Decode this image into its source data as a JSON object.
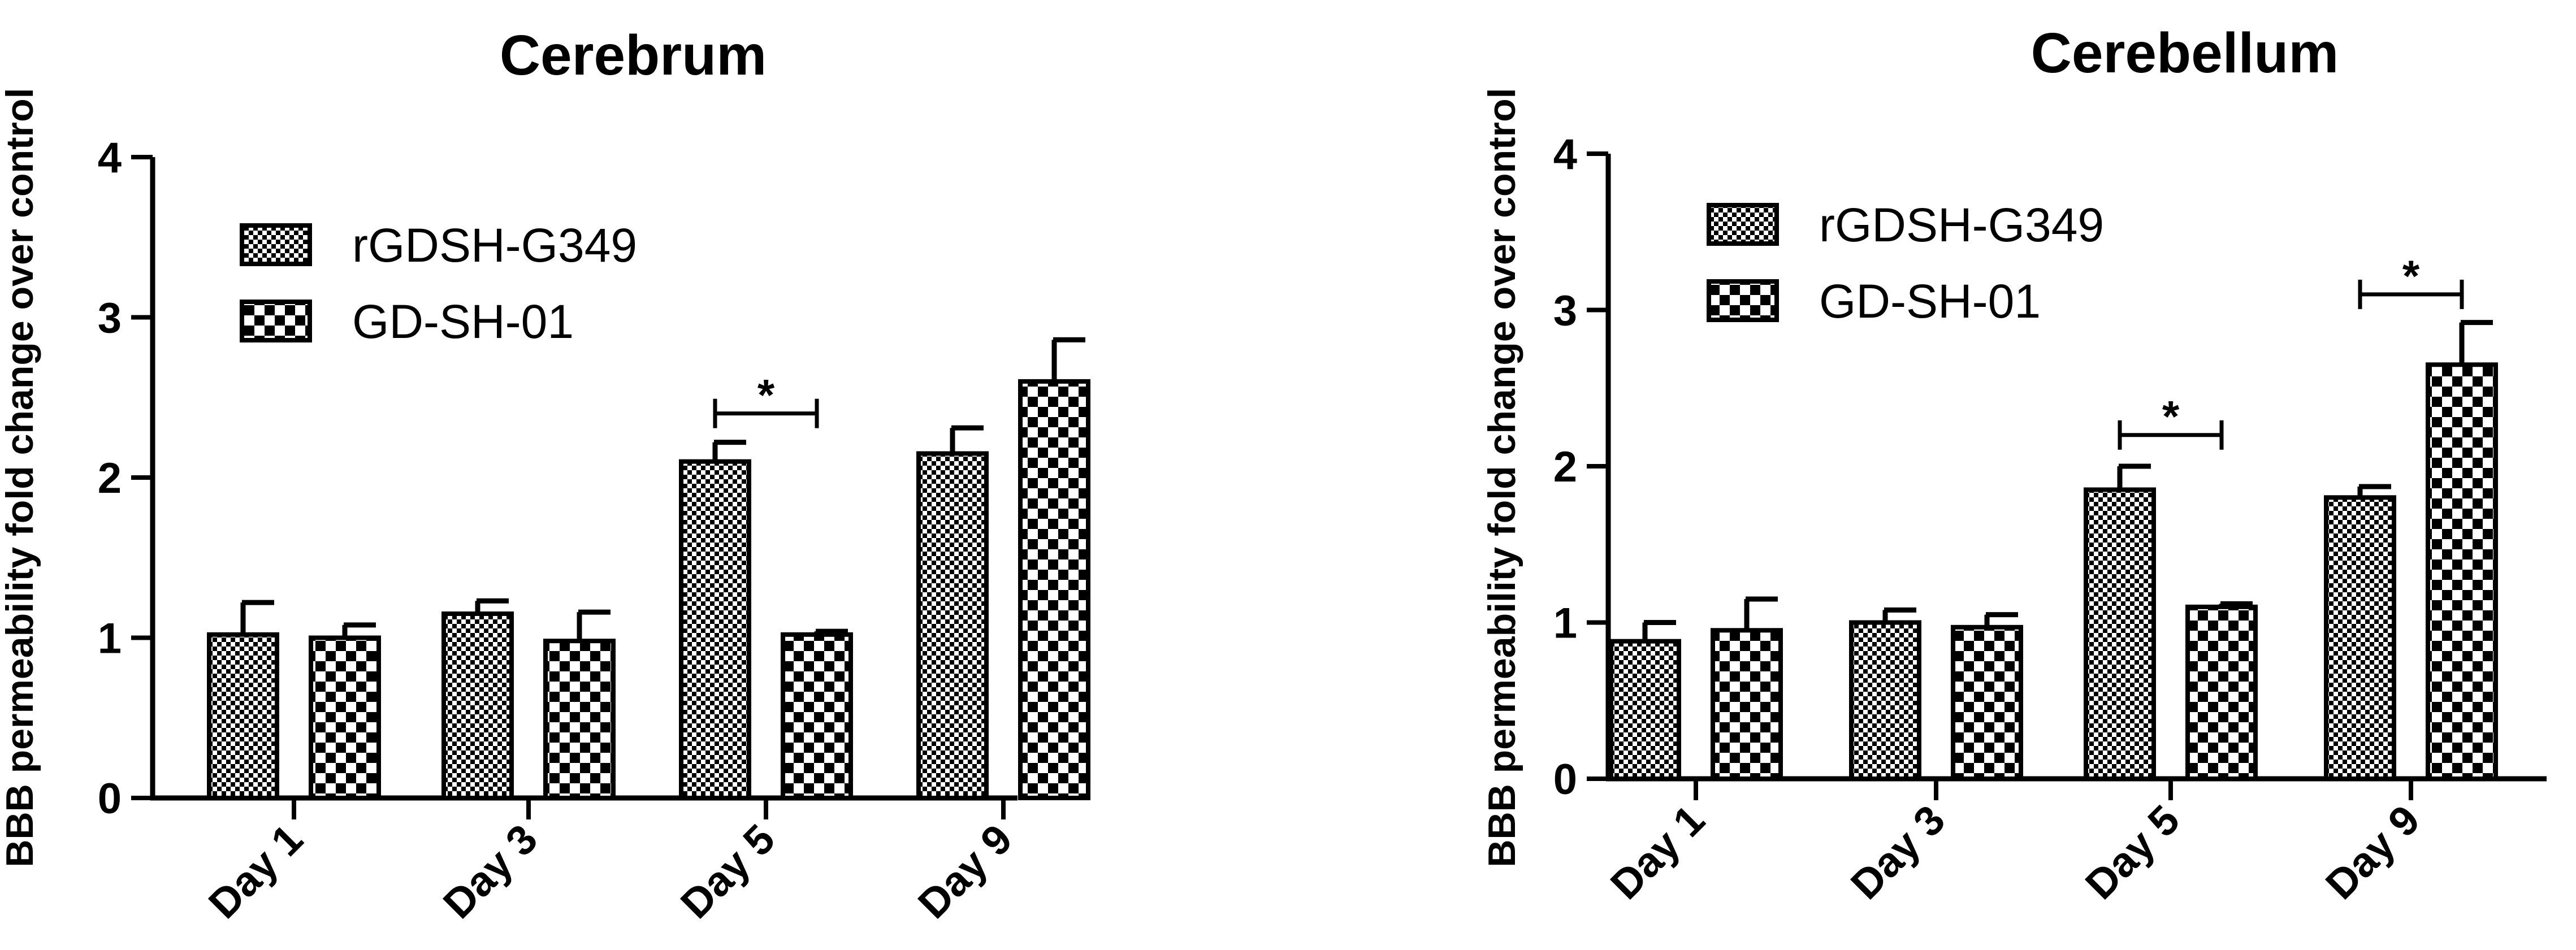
{
  "chart_data": [
    {
      "type": "bar",
      "title": "Cerebrum",
      "ylabel": "BBB permeability fold change over control",
      "xlabel": "",
      "categories": [
        "Day 1",
        "Day 3",
        "Day 5",
        "Day 9"
      ],
      "yticks": [
        "0",
        "1",
        "2",
        "3",
        "4"
      ],
      "ylim": [
        0,
        4
      ],
      "legend_position": "upper-left",
      "series": [
        {
          "name": "rGDSH-G349",
          "pattern": "fine-checker",
          "values": [
            1.02,
            1.15,
            2.1,
            2.15
          ],
          "errors": [
            0.2,
            0.08,
            0.12,
            0.16
          ]
        },
        {
          "name": "GD-SH-01",
          "pattern": "coarse-checker",
          "values": [
            1.0,
            0.98,
            1.02,
            2.6
          ],
          "errors": [
            0.08,
            0.18,
            0.02,
            0.26
          ]
        }
      ],
      "significance": [
        {
          "category": "Day 5",
          "label": "*",
          "level": 2.4
        }
      ]
    },
    {
      "type": "bar",
      "title": "Cerebellum",
      "ylabel": "BBB permeability fold change over control",
      "xlabel": "",
      "categories": [
        "Day 1",
        "Day 3",
        "Day 5",
        "Day 9"
      ],
      "yticks": [
        "0",
        "1",
        "2",
        "3",
        "4"
      ],
      "ylim": [
        0,
        4
      ],
      "legend_position": "upper-left",
      "series": [
        {
          "name": "rGDSH-G349",
          "pattern": "fine-checker",
          "values": [
            0.88,
            1.0,
            1.85,
            1.8
          ],
          "errors": [
            0.12,
            0.08,
            0.15,
            0.07
          ]
        },
        {
          "name": "GD-SH-01",
          "pattern": "coarse-checker",
          "values": [
            0.95,
            0.97,
            1.1,
            2.65
          ],
          "errors": [
            0.2,
            0.08,
            0.02,
            0.27
          ]
        }
      ],
      "significance": [
        {
          "category": "Day 5",
          "label": "*",
          "level": 2.2
        },
        {
          "category": "Day 9",
          "label": "*",
          "level": 3.1
        }
      ]
    }
  ]
}
